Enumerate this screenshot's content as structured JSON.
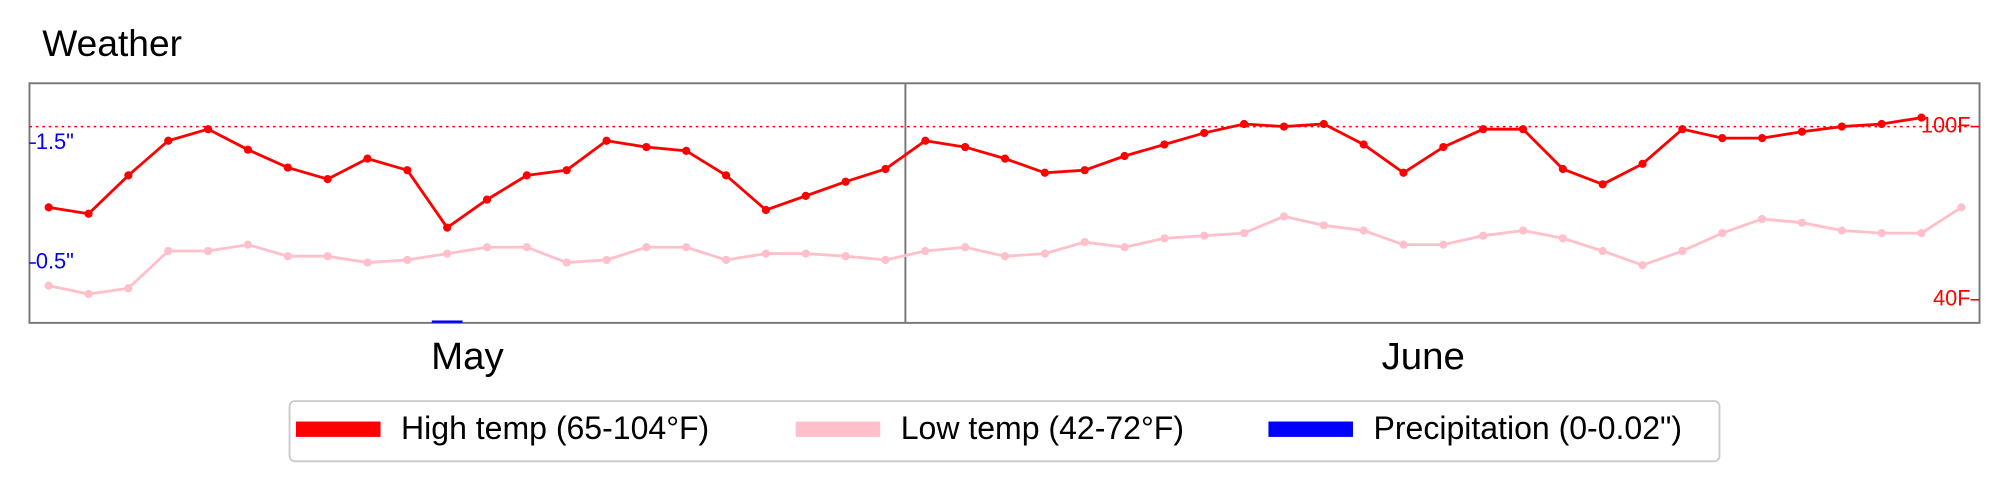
{
  "chart_data": {
    "type": "line",
    "title": "Weather",
    "month_labels": [
      "May",
      "June"
    ],
    "categories": [
      null,
      null,
      null,
      null,
      null,
      null,
      null,
      null,
      null,
      null,
      null,
      null,
      null,
      null,
      null,
      null,
      null,
      null,
      null,
      null,
      null,
      null,
      null,
      null,
      null,
      null,
      null,
      null,
      null,
      null,
      null,
      null,
      null,
      null,
      null,
      null,
      null,
      null,
      null,
      null,
      null,
      null,
      null,
      null,
      null,
      null,
      null,
      null,
      null
    ],
    "series": [
      {
        "name": "High temp (65-104°F)",
        "color": "#ff0000",
        "axis": "y2",
        "kind": "line",
        "values": [
          72,
          69.8,
          83.1,
          95.1,
          99.1,
          92,
          85.8,
          81.8,
          88.9,
          84.9,
          65,
          74.7,
          83.1,
          84.9,
          95.1,
          92.9,
          91.6,
          83.1,
          71.1,
          76,
          80.9,
          85.3,
          95.1,
          92.9,
          88.9,
          84,
          84.9,
          89.8,
          93.8,
          97.8,
          100.9,
          100,
          100.9,
          93.8,
          84,
          92.9,
          99.1,
          99.1,
          85.3,
          80,
          87.1,
          99.1,
          96,
          96,
          98.2,
          100,
          100.9,
          103.1,
          null
        ]
      },
      {
        "name": "Low temp (42-72°F)",
        "color": "#ffc0cb",
        "axis": "y2",
        "kind": "line",
        "values": [
          44.9,
          42,
          44,
          56.9,
          56.9,
          59.1,
          55.1,
          55.1,
          52.9,
          53.8,
          56,
          58.2,
          58.2,
          52.9,
          53.8,
          58.2,
          58.2,
          53.8,
          56,
          56,
          55.1,
          53.8,
          56.9,
          58.2,
          55.1,
          56,
          60,
          58.2,
          61.3,
          62.2,
          63.1,
          68.9,
          65.8,
          64,
          59.1,
          59.1,
          62.2,
          64,
          61.3,
          56.9,
          52,
          56.9,
          63.1,
          68,
          66.7,
          64,
          63.1,
          63.1,
          72
        ]
      },
      {
        "name": "Precipitation (0-0.02\")",
        "color": "#0000ff",
        "axis": "y",
        "kind": "bar",
        "values": [
          0,
          0,
          0,
          0,
          0,
          0,
          0,
          0,
          0,
          0,
          0.02,
          0,
          0,
          0,
          0,
          0,
          0,
          0,
          0,
          0,
          0,
          0,
          0,
          0,
          0,
          0,
          0,
          0,
          0,
          0,
          0,
          0,
          0,
          0,
          0,
          0,
          0,
          0,
          0,
          0,
          0,
          0,
          0,
          0,
          0,
          0,
          0,
          0,
          0
        ]
      }
    ],
    "ylim": [
      0,
      2
    ],
    "yticks": [
      {
        "value": 0.5,
        "label": "0.5\""
      },
      {
        "value": 1.5,
        "label": "1.5\""
      }
    ],
    "y2lim": [
      32,
      115
    ],
    "y2ticks": [
      {
        "value": 40,
        "label": "40F"
      },
      {
        "value": 100,
        "label": "100F"
      }
    ],
    "reference_line": {
      "value": 100,
      "axis": "y2",
      "color": "#ff0000",
      "style": "dotted"
    },
    "legend": "bottom"
  }
}
